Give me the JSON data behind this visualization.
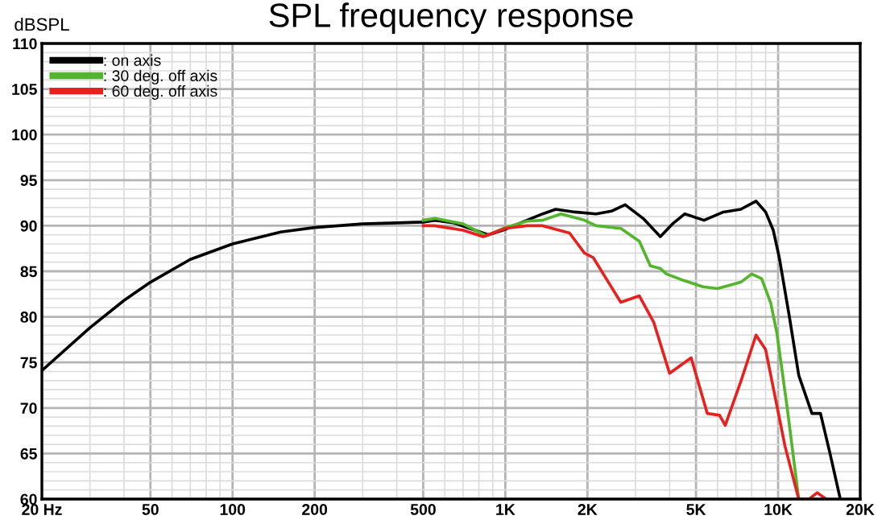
{
  "chart_data": {
    "type": "line",
    "title": "SPL frequency response",
    "ylabel": "dBSPL",
    "log": "x",
    "grid": true,
    "legend": "top left",
    "marker": "none",
    "line_style": "solid",
    "xlim": [
      20,
      20000
    ],
    "ylim": [
      60,
      110
    ],
    "xticks": [
      {
        "value": 20,
        "label": "20 Hz"
      },
      50,
      100,
      200,
      500,
      {
        "value": 1000,
        "label": "1K"
      },
      {
        "value": 2000,
        "label": "2K"
      },
      {
        "value": 5000,
        "label": "5K"
      },
      {
        "value": 10000,
        "label": "10K"
      },
      {
        "value": 20000,
        "label": "20K"
      }
    ],
    "yticks": [
      60,
      65,
      70,
      75,
      80,
      85,
      90,
      95,
      100,
      105,
      110
    ],
    "series": [
      {
        "name": ": on axis",
        "color": "#000000",
        "x": [
          20,
          30,
          40,
          50,
          70,
          100,
          150,
          200,
          300,
          500,
          552,
          650,
          866,
          1000,
          1200,
          1370,
          1530,
          1800,
          2150,
          2450,
          2750,
          3200,
          3700,
          4100,
          4550,
          5350,
          6300,
          7300,
          8300,
          9000,
          9600,
          10100,
          11000,
          11900,
          13300,
          14300,
          15500,
          16900
        ],
        "values": [
          74.1,
          78.8,
          81.8,
          83.8,
          86.3,
          88.0,
          89.3,
          89.8,
          90.2,
          90.4,
          90.6,
          90.3,
          89.0,
          89.6,
          90.6,
          91.3,
          91.8,
          91.5,
          91.3,
          91.6,
          92.3,
          90.8,
          88.8,
          90.2,
          91.3,
          90.6,
          91.5,
          91.8,
          92.7,
          91.5,
          89.5,
          86.5,
          80.0,
          73.6,
          69.4,
          69.4,
          65.0,
          60.0
        ]
      },
      {
        "name": ": 30 deg. off axis",
        "color": "#52b52a",
        "x": [
          500,
          552,
          700,
          850,
          1000,
          1200,
          1370,
          1600,
          1950,
          2150,
          2650,
          3100,
          3400,
          3700,
          3900,
          4500,
          5300,
          6000,
          7300,
          8000,
          8700,
          9400,
          9900,
          10800,
          11900
        ],
        "values": [
          90.6,
          90.8,
          90.2,
          88.9,
          89.8,
          90.5,
          90.6,
          91.3,
          90.6,
          90.0,
          89.7,
          88.3,
          85.6,
          85.3,
          84.7,
          84.0,
          83.3,
          83.1,
          83.8,
          84.7,
          84.2,
          81.5,
          78.2,
          70.0,
          60.0
        ]
      },
      {
        "name": ": 60 deg. off axis",
        "color": "#e8201e",
        "x": [
          500,
          550,
          700,
          830,
          1000,
          1200,
          1370,
          1720,
          1950,
          2100,
          2650,
          3100,
          3500,
          4000,
          4800,
          5500,
          6100,
          6400,
          7300,
          8300,
          9000,
          10600,
          11900,
          13000,
          13900,
          15000
        ],
        "values": [
          90.0,
          90.0,
          89.5,
          88.8,
          89.7,
          90.0,
          90.0,
          89.2,
          87.0,
          86.5,
          81.6,
          82.3,
          79.4,
          73.8,
          75.5,
          69.4,
          69.2,
          68.1,
          72.9,
          78.0,
          76.4,
          65.8,
          60.0,
          60.0,
          60.7,
          60.0
        ]
      }
    ]
  }
}
